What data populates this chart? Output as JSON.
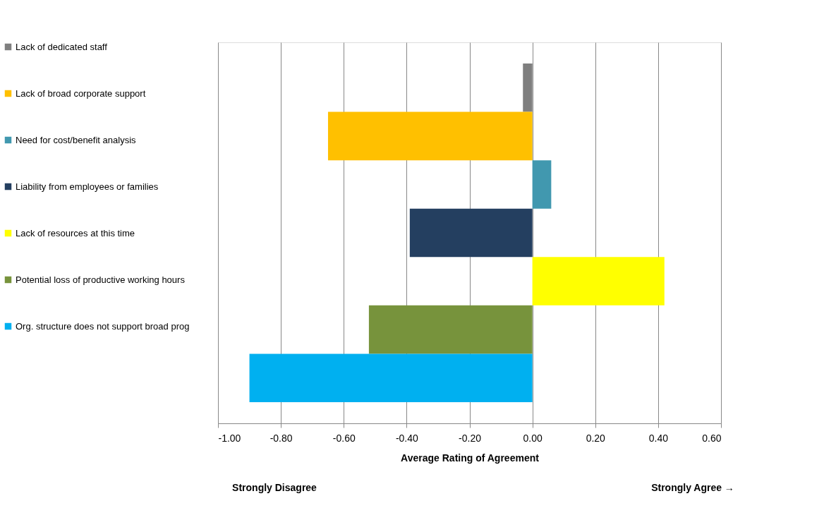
{
  "chart_data": {
    "type": "bar",
    "orientation": "horizontal",
    "categories": [
      null
    ],
    "series": [
      {
        "name": "Lack of dedicated staff",
        "color": "#7f7f7f",
        "values": [
          -0.03
        ]
      },
      {
        "name": "Lack of broad corporate support",
        "color": "#ffc000",
        "values": [
          -0.65
        ]
      },
      {
        "name": "Need for cost/benefit analysis",
        "color": "#4198af",
        "values": [
          0.06
        ]
      },
      {
        "name": "Liability from employees or families",
        "color": "#243f60",
        "values": [
          -0.39
        ]
      },
      {
        "name": "Lack of resources at this time",
        "color": "#ffff00",
        "values": [
          0.42
        ]
      },
      {
        "name": "Potential loss of productive working hours",
        "color": "#77933c",
        "values": [
          -0.52
        ]
      },
      {
        "name": "Org. structure does not support broad prog",
        "color": "#00b0f0",
        "values": [
          -0.9
        ]
      }
    ],
    "xlim": [
      -1.0,
      0.6
    ],
    "xticks": [
      {
        "value": -1.0,
        "label": "-1.00"
      },
      {
        "value": -0.8,
        "label": "-0.80"
      },
      {
        "value": -0.6,
        "label": "-0.60"
      },
      {
        "value": -0.4,
        "label": "-0.40"
      },
      {
        "value": -0.2,
        "label": "-0.20"
      },
      {
        "value": 0,
        "label": "0.00"
      },
      {
        "value": 0.2,
        "label": "0.20"
      },
      {
        "value": 0.4,
        "label": "0.40"
      },
      {
        "value": 0.6,
        "label": "0.60"
      }
    ],
    "xlabel": "Average Rating of Agreement",
    "annotations": [
      "Strongly Disagree",
      "Strongly Agree →"
    ],
    "grid": "x",
    "legend": "left"
  }
}
